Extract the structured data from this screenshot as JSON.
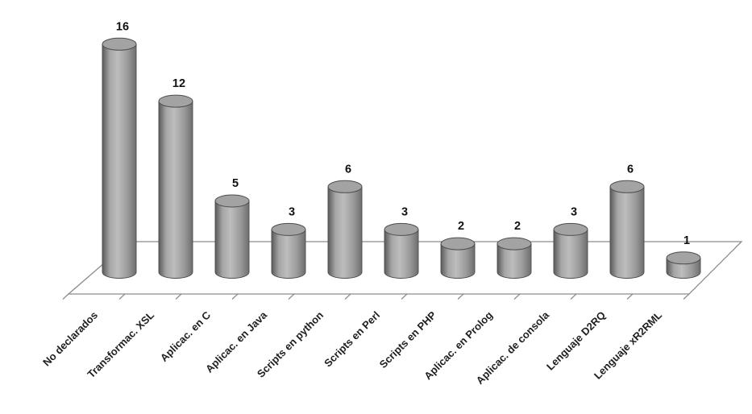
{
  "chart_data": {
    "type": "bar",
    "subtype": "cylinder-3d",
    "title": "",
    "xlabel": "",
    "ylabel": "",
    "categories": [
      "No declarados",
      "Transformac. XSL",
      "Aplicac. en C",
      "Aplicac. en Java",
      "Scripts en python",
      "Scripts en Perl",
      "Scripts en PHP",
      "Aplicac. en Prolog",
      "Aplicac. de consola",
      "Lenguaje D2RQ",
      "Lenguaje xR2RML"
    ],
    "values": [
      16,
      12,
      5,
      3,
      6,
      3,
      2,
      2,
      3,
      6,
      1
    ],
    "ylim": [
      0,
      16
    ],
    "grid": false,
    "legend": null,
    "data_labels": true,
    "label_rotation_deg": -45,
    "colors": {
      "background": "#ffffff",
      "bar_edge_dark": "#5a5a5a",
      "bar_highlight": "#bdbdbd",
      "bar_mid": "#9a9a9a",
      "bar_top_fill": "#a3a3a3",
      "outline": "#4d4d4d",
      "floor_line": "#8c8c8c",
      "value_label_text": "#111111",
      "category_label_text": "#1f1f1f"
    }
  }
}
